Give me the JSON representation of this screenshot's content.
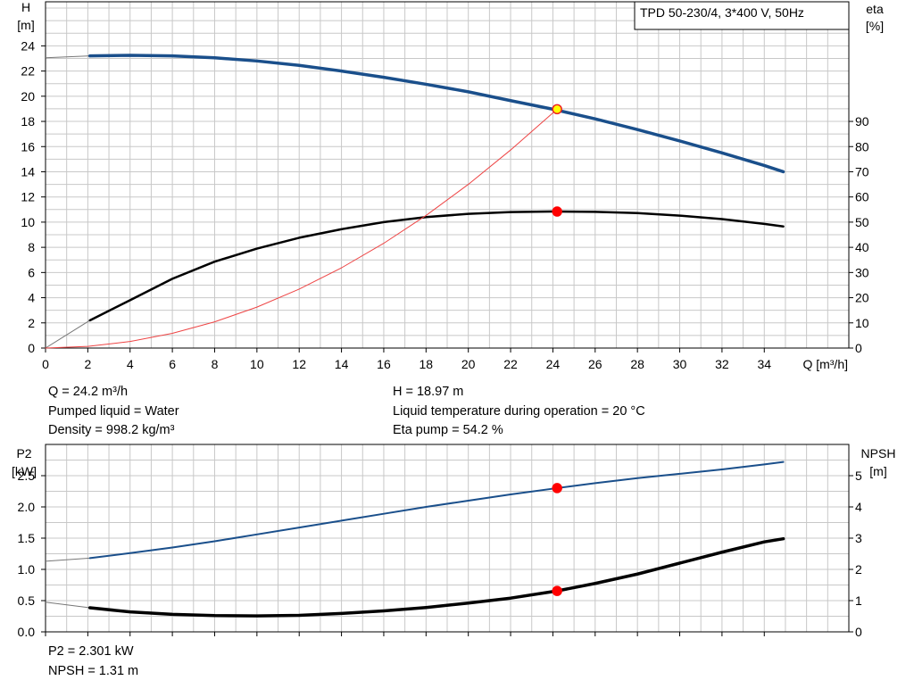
{
  "chart_data": [
    {
      "type": "line",
      "panel": "upper",
      "model_label": "TPD 50-230/4, 3*400 V, 50Hz",
      "x_axis": {
        "label": "Q [m³/h]",
        "range": [
          0,
          38
        ],
        "ticks": [
          0,
          2,
          4,
          6,
          8,
          10,
          12,
          14,
          16,
          18,
          20,
          22,
          24,
          26,
          28,
          30,
          32,
          34
        ]
      },
      "y_left_axis": {
        "label_line1": "H",
        "label_line2": "[m]",
        "range": [
          0,
          27.5
        ],
        "ticks": [
          0,
          2,
          4,
          6,
          8,
          10,
          12,
          14,
          16,
          18,
          20,
          22,
          24
        ]
      },
      "y_right_axis": {
        "label_line1": "eta",
        "label_line2": "[%]",
        "range": [
          0,
          137.5
        ],
        "ticks": [
          0,
          10,
          20,
          30,
          40,
          50,
          60,
          70,
          80,
          90
        ]
      },
      "grid": true,
      "series": [
        {
          "key": "head",
          "axis": "left",
          "color": "#1a4f8b",
          "width": 3.5,
          "extension": {
            "x": [
              0,
              2.1
            ],
            "y": [
              23.05,
              23.2
            ]
          },
          "x": [
            2.1,
            4,
            6,
            8,
            10,
            12,
            14,
            16,
            18,
            20,
            22,
            24,
            26,
            28,
            30,
            32,
            34,
            34.9
          ],
          "y": [
            23.2,
            23.25,
            23.2,
            23.05,
            22.8,
            22.45,
            22.0,
            21.5,
            20.95,
            20.35,
            19.65,
            18.97,
            18.2,
            17.35,
            16.45,
            15.5,
            14.5,
            14.0
          ]
        },
        {
          "key": "efficiency",
          "axis": "right",
          "color": "#000000",
          "width": 2.5,
          "extension": {
            "x": [
              0,
              2.1
            ],
            "y": [
              0,
              11
            ]
          },
          "x": [
            2.1,
            4,
            6,
            8,
            10,
            12,
            14,
            16,
            18,
            20,
            22,
            24,
            26,
            28,
            30,
            32,
            34,
            34.9
          ],
          "y": [
            11,
            19,
            27.5,
            34.3,
            39.5,
            43.8,
            47.2,
            50.0,
            52.0,
            53.3,
            54.0,
            54.2,
            54.1,
            53.6,
            52.6,
            51.2,
            49.3,
            48.3
          ]
        },
        {
          "key": "system_curve",
          "axis": "left",
          "color": "#ee4444",
          "width": 1,
          "x": [
            0,
            2,
            4,
            6,
            8,
            10,
            12,
            14,
            16,
            18,
            20,
            22,
            24.2
          ],
          "y": [
            0,
            0.13,
            0.52,
            1.17,
            2.08,
            3.25,
            4.68,
            6.37,
            8.32,
            10.53,
            13.0,
            15.73,
            18.97
          ]
        }
      ],
      "duty_points": [
        {
          "axis": "left",
          "x": 24.2,
          "y": 18.97,
          "fill": "#ffff00",
          "stroke": "#ee2222"
        },
        {
          "axis": "right",
          "x": 24.2,
          "y": 54.2,
          "fill": "#ff0000",
          "stroke": "#ff0000"
        }
      ]
    },
    {
      "type": "line",
      "panel": "lower",
      "x_axis": {
        "range": [
          0,
          38
        ]
      },
      "y_left_axis": {
        "label_line1": "P2",
        "label_line2": "[kW]",
        "range": [
          0,
          3.0
        ],
        "ticks": [
          0,
          0.5,
          1.0,
          1.5,
          2.0,
          2.5
        ],
        "tick_labels": [
          "0.0",
          "0.5",
          "1.0",
          "1.5",
          "2.0",
          "2.5"
        ]
      },
      "y_right_axis": {
        "label_line1": "NPSH",
        "label_line2": "[m]",
        "range": [
          0,
          6.0
        ],
        "ticks": [
          0,
          1,
          2,
          3,
          4,
          5
        ]
      },
      "grid": true,
      "series": [
        {
          "key": "power_p2",
          "axis": "left",
          "color": "#1a4f8b",
          "width": 2,
          "extension": {
            "x": [
              0,
              2.1
            ],
            "y": [
              1.13,
              1.18
            ]
          },
          "x": [
            2.1,
            4,
            6,
            8,
            10,
            12,
            14,
            16,
            18,
            20,
            22,
            24.2,
            26,
            28,
            30,
            32,
            34,
            34.9
          ],
          "y": [
            1.18,
            1.26,
            1.35,
            1.45,
            1.56,
            1.67,
            1.78,
            1.89,
            2.0,
            2.1,
            2.2,
            2.301,
            2.38,
            2.46,
            2.53,
            2.6,
            2.68,
            2.72
          ]
        },
        {
          "key": "npsh",
          "axis": "right",
          "color": "#000000",
          "width": 3.5,
          "extension": {
            "x": [
              0,
              2.1
            ],
            "y": [
              0.95,
              0.77
            ]
          },
          "x": [
            2.1,
            4,
            6,
            8,
            10,
            12,
            14,
            16,
            18,
            20,
            22,
            24.2,
            26,
            28,
            30,
            32,
            34,
            34.9
          ],
          "y": [
            0.77,
            0.64,
            0.56,
            0.52,
            0.51,
            0.53,
            0.59,
            0.67,
            0.78,
            0.92,
            1.08,
            1.31,
            1.55,
            1.85,
            2.2,
            2.55,
            2.88,
            2.98
          ]
        }
      ],
      "duty_points": [
        {
          "axis": "left",
          "x": 24.2,
          "y": 2.301,
          "fill": "#ff0000",
          "stroke": "#ff0000"
        },
        {
          "axis": "right",
          "x": 24.2,
          "y": 1.31,
          "fill": "#ff0000",
          "stroke": "#ff0000"
        }
      ]
    }
  ],
  "info_upper": {
    "flow": "Q = 24.2 m³/h",
    "liquid": "Pumped liquid = Water",
    "density": "Density = 998.2 kg/m³",
    "head": "H = 18.97 m",
    "temperature": "Liquid temperature during operation = 20 °C",
    "eta_pump": "Eta pump = 54.2 %"
  },
  "info_lower": {
    "power": "P2 = 2.301 kW",
    "npsh": "NPSH = 1.31 m"
  },
  "colors": {
    "grid": "#c8c8c8",
    "frame": "#000000",
    "head_curve": "#1a4f8b",
    "system_curve": "#ee4444",
    "duty_point": "#ff0000"
  }
}
